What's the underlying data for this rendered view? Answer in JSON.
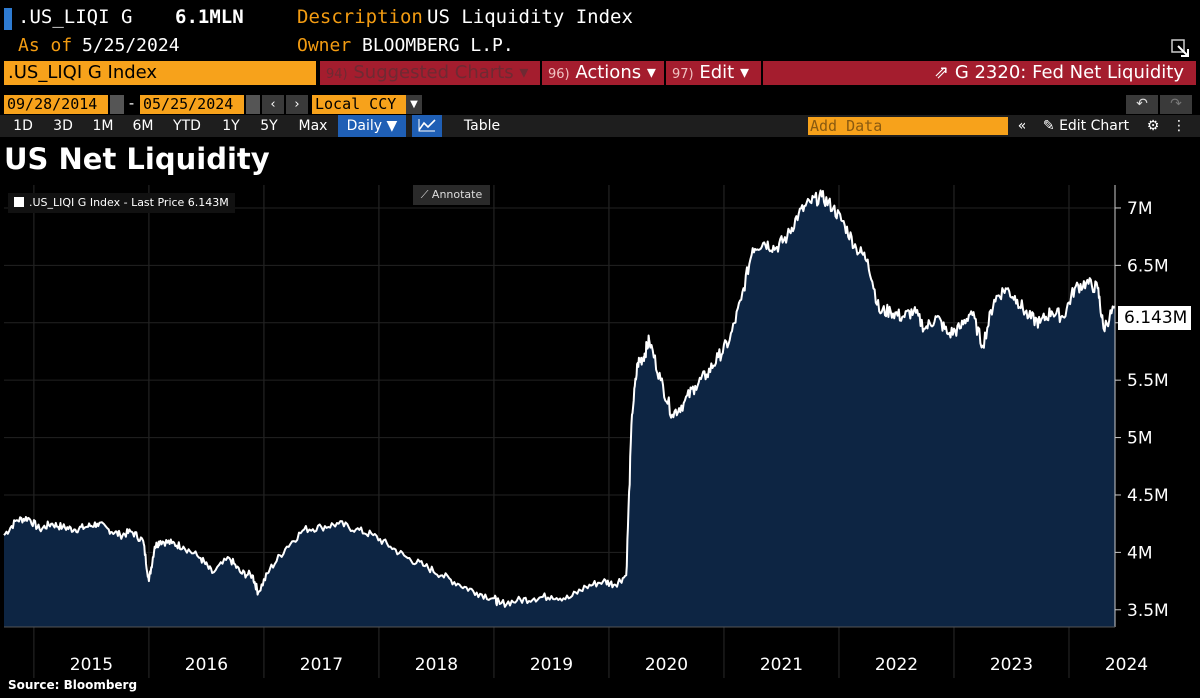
{
  "header": {
    "ticker": ".US_LIQI G",
    "value": "6.1MLN",
    "asof_label": "As of",
    "asof_date": "5/25/2024",
    "description_label": "Description",
    "description": "US Liquidity Index",
    "owner_label": "Owner",
    "owner": "BLOOMBERG L.P."
  },
  "command": {
    "security": ".US_LIQI G Index",
    "suggested_num": "94)",
    "suggested_label": "Suggested Charts",
    "actions_num": "96)",
    "actions_label": "Actions",
    "edit_num": "97)",
    "edit_label": "Edit",
    "fed_label": "G 2320: Fed Net Liquidity"
  },
  "range": {
    "start": "09/28/2014",
    "end": "05/25/2024",
    "separator": "-",
    "currency": "Local CCY"
  },
  "periods": [
    "1D",
    "3D",
    "1M",
    "6M",
    "YTD",
    "1Y",
    "5Y",
    "Max"
  ],
  "frequency": "Daily",
  "table_label": "Table",
  "add_data_placeholder": "Add Data",
  "edit_chart_label": "Edit Chart",
  "annotate_label": "Annotate",
  "source": "Source: Bloomberg",
  "colors": {
    "accent_orange": "#f7a21b",
    "red_button": "#a41d2e",
    "area_fill": "#0d2543",
    "line": "#ffffff"
  },
  "chart_data": {
    "type": "area",
    "title": "US Net Liquidity",
    "legend": [
      ".US_LIQI G Index - Last Price 6.143M"
    ],
    "last_value_label": "6.143M",
    "y_unit": "M",
    "ylim": [
      3.35,
      7.2
    ],
    "y_ticks": [
      3.5,
      4,
      4.5,
      5,
      5.5,
      6,
      6.5,
      7
    ],
    "y_tick_labels": [
      "3.5M",
      "4M",
      "4.5M",
      "5M",
      "5.5M",
      "6M",
      "6.5M",
      "7M"
    ],
    "x_labels": [
      "2015",
      "2016",
      "2017",
      "2018",
      "2019",
      "2020",
      "2021",
      "2022",
      "2023",
      "2024"
    ],
    "xlim": [
      2014.74,
      2024.4
    ],
    "grid": true,
    "legend_placement": "top-left",
    "series": [
      {
        "x": [
          2014.74,
          2014.85,
          2014.95,
          2015.05,
          2015.15,
          2015.25,
          2015.35,
          2015.45,
          2015.55,
          2015.65,
          2015.75,
          2015.85,
          2015.95,
          2016.0,
          2016.05,
          2016.1,
          2016.2,
          2016.3,
          2016.45,
          2016.55,
          2016.7,
          2016.8,
          2016.9,
          2016.95,
          2017.05,
          2017.2,
          2017.35,
          2017.5,
          2017.65,
          2017.8,
          2017.95,
          2018.1,
          2018.25,
          2018.4,
          2018.55,
          2018.7,
          2018.85,
          2019.0,
          2019.05,
          2019.2,
          2019.35,
          2019.5,
          2019.65,
          2019.8,
          2019.95,
          2020.05,
          2020.15,
          2020.2,
          2020.25,
          2020.3,
          2020.35,
          2020.45,
          2020.55,
          2020.65,
          2020.75,
          2020.85,
          2020.95,
          2021.05,
          2021.15,
          2021.25,
          2021.35,
          2021.45,
          2021.55,
          2021.65,
          2021.75,
          2021.85,
          2021.95,
          2022.05,
          2022.15,
          2022.25,
          2022.35,
          2022.45,
          2022.55,
          2022.65,
          2022.75,
          2022.85,
          2022.95,
          2023.05,
          2023.15,
          2023.25,
          2023.35,
          2023.45,
          2023.55,
          2023.65,
          2023.75,
          2023.85,
          2023.95,
          2024.05,
          2024.15,
          2024.25,
          2024.3,
          2024.4
        ],
        "y": [
          4.15,
          4.28,
          4.3,
          4.2,
          4.25,
          4.22,
          4.2,
          4.22,
          4.25,
          4.2,
          4.15,
          4.18,
          4.1,
          3.75,
          4.05,
          4.1,
          4.08,
          4.05,
          3.95,
          3.82,
          3.95,
          3.82,
          3.8,
          3.65,
          3.85,
          4.05,
          4.2,
          4.22,
          4.25,
          4.2,
          4.15,
          4.05,
          3.95,
          3.88,
          3.8,
          3.72,
          3.65,
          3.6,
          3.55,
          3.58,
          3.6,
          3.62,
          3.6,
          3.7,
          3.75,
          3.72,
          3.8,
          5.2,
          5.65,
          5.7,
          5.85,
          5.5,
          5.2,
          5.3,
          5.45,
          5.55,
          5.7,
          5.85,
          6.2,
          6.65,
          6.7,
          6.65,
          6.75,
          6.95,
          7.05,
          7.1,
          7.0,
          6.85,
          6.65,
          6.55,
          6.1,
          6.1,
          6.05,
          6.1,
          5.95,
          6.05,
          5.9,
          5.95,
          6.1,
          5.8,
          6.2,
          6.3,
          6.2,
          6.05,
          6.0,
          6.1,
          6.05,
          6.3,
          6.35,
          6.3,
          5.95,
          6.143
        ]
      }
    ]
  }
}
